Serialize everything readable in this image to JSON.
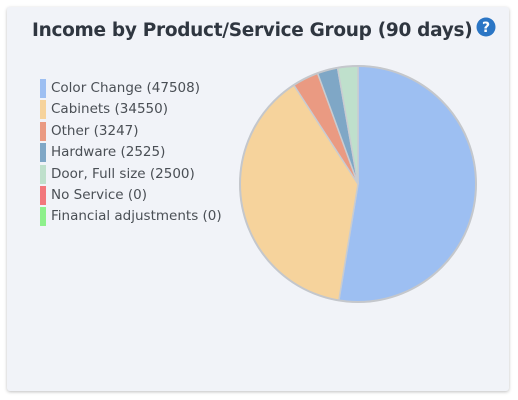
{
  "card": {
    "title": "Income by Product/Service Group (90 days)",
    "help_icon": "question-circle-icon",
    "help_color": "#2b76c5"
  },
  "chart_data": {
    "type": "pie",
    "title": "Income by Product/Service Group (90 days)",
    "legend_position": "left",
    "slices": [
      {
        "name": "Color Change (47508)",
        "category": "Color Change",
        "value": 47508,
        "color": "#9dbff2"
      },
      {
        "name": "Cabinets (34550)",
        "category": "Cabinets",
        "value": 34550,
        "color": "#f6d39c"
      },
      {
        "name": "Other (3247)",
        "category": "Other",
        "value": 3247,
        "color": "#ea9a82"
      },
      {
        "name": "Hardware (2525)",
        "category": "Hardware",
        "value": 2525,
        "color": "#7fa7c6"
      },
      {
        "name": "Door, Full size (2500)",
        "category": "Door, Full size",
        "value": 2500,
        "color": "#bfe0cc"
      },
      {
        "name": "No Service (0)",
        "category": "No Service",
        "value": 0,
        "color": "#f2777c"
      },
      {
        "name": "Financial adjustments (0)",
        "category": "Financial adjustments",
        "value": 0,
        "color": "#8ef08c"
      }
    ]
  }
}
